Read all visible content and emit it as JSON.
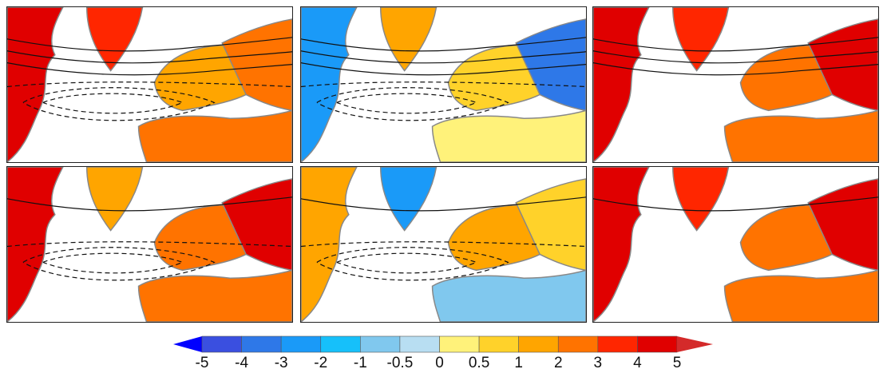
{
  "colorbar": {
    "labels": [
      "-5",
      "-4",
      "-3",
      "-2",
      "-1",
      "-0.5",
      "0",
      "0.5",
      "1",
      "2",
      "3",
      "4",
      "5"
    ],
    "low_extend_color": "#0000ff",
    "high_extend_color": "#d42a2a",
    "colors": [
      "#3a4fe0",
      "#2e78e8",
      "#1a9af8",
      "#16c0fa",
      "#80c8ee",
      "#b8def2",
      "#fff27a",
      "#ffd22a",
      "#ffa500",
      "#ff7300",
      "#ff2600",
      "#e00000"
    ]
  },
  "panels": [
    {
      "greenland": "#ff2600",
      "namerica": "#e00000",
      "europe": "#ffa500",
      "asia": "#ff7300",
      "africa": "#ff7300"
    },
    {
      "greenland": "#ffa500",
      "namerica": "#1a9af8",
      "europe": "#ffd22a",
      "asia": "#2e78e8",
      "africa": "#fff27a"
    },
    {
      "greenland": "#ff2600",
      "namerica": "#e00000",
      "europe": "#ff7300",
      "asia": "#e00000",
      "africa": "#ff7300"
    },
    {
      "greenland": "#ffa500",
      "namerica": "#e00000",
      "europe": "#ff7300",
      "asia": "#e00000",
      "africa": "#ff7300"
    },
    {
      "greenland": "#1a9af8",
      "namerica": "#ffa500",
      "europe": "#ffa500",
      "asia": "#ffd22a",
      "africa": "#80c8ee"
    },
    {
      "greenland": "#ff2600",
      "namerica": "#e00000",
      "europe": "#ff7300",
      "asia": "#e00000",
      "africa": "#ff7300"
    }
  ]
}
